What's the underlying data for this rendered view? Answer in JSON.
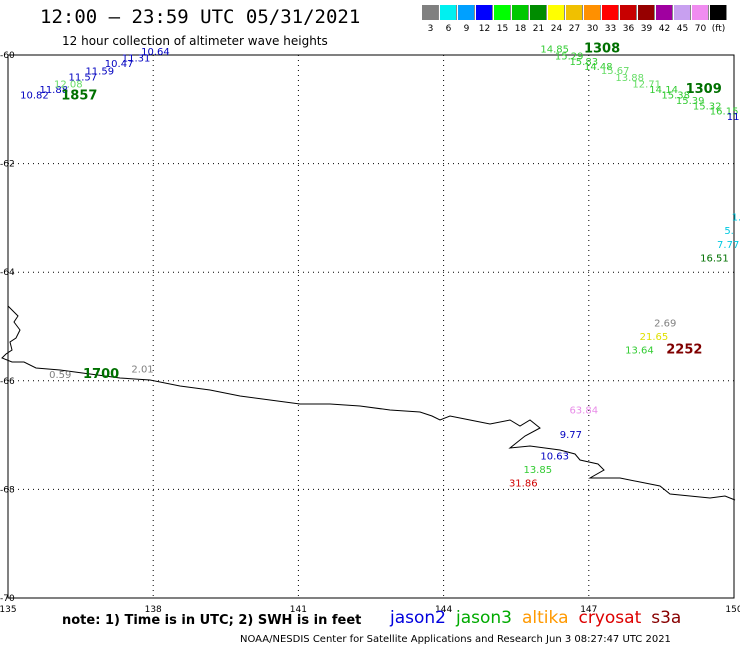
{
  "title": "12:00 – 23:59 UTC 05/31/2021",
  "subtitle": "12 hour collection of altimeter wave heights",
  "colorbar": {
    "colors": [
      "#808080",
      "#00f0f0",
      "#00a0ff",
      "#0000ff",
      "#00ff00",
      "#00c800",
      "#008c00",
      "#ffff00",
      "#f0c000",
      "#ff9000",
      "#ff0000",
      "#c80000",
      "#960000",
      "#a000a0",
      "#c8a0f0",
      "#f08cf0",
      "#000000"
    ],
    "labels": [
      "3",
      "6",
      "9",
      "12",
      "15",
      "18",
      "21",
      "24",
      "27",
      "30",
      "33",
      "36",
      "39",
      "42",
      "45",
      "70",
      "(ft)"
    ]
  },
  "axes": {
    "lon_labels": [
      "135",
      "138",
      "141",
      "144",
      "147",
      "150"
    ],
    "lon_values": [
      135,
      138,
      141,
      144,
      147,
      150
    ],
    "lat_labels": [
      "-60",
      "-62",
      "-64",
      "-66",
      "-68",
      "-70"
    ],
    "lat_values": [
      -60,
      -62,
      -64,
      -66,
      -68,
      -70
    ]
  },
  "labels": [
    {
      "text": "10.82",
      "lon": 135.25,
      "lat": -60.8,
      "color": "#0000c0"
    },
    {
      "text": "11.88",
      "lon": 135.65,
      "lat": -60.7,
      "color": "#0000c0"
    },
    {
      "text": "12.08",
      "lon": 135.95,
      "lat": -60.6,
      "color": "#66dd66"
    },
    {
      "text": "1857",
      "lon": 136.1,
      "lat": -60.82,
      "color": "#007000",
      "bold": true
    },
    {
      "text": "11.57",
      "lon": 136.25,
      "lat": -60.47,
      "color": "#0000c0"
    },
    {
      "text": "11.59",
      "lon": 136.6,
      "lat": -60.36,
      "color": "#0000c0"
    },
    {
      "text": "10.47",
      "lon": 137.0,
      "lat": -60.22,
      "color": "#0000c0"
    },
    {
      "text": "11.31",
      "lon": 137.35,
      "lat": -60.12,
      "color": "#0000c0"
    },
    {
      "text": "10.64",
      "lon": 137.75,
      "lat": -60.0,
      "color": "#0000c0"
    },
    {
      "text": "14.85",
      "lon": 146.0,
      "lat": -59.95,
      "color": "#33cc33"
    },
    {
      "text": "1308",
      "lon": 146.9,
      "lat": -59.95,
      "color": "#007000",
      "bold": true
    },
    {
      "text": "15.29",
      "lon": 146.3,
      "lat": -60.08,
      "color": "#33cc33"
    },
    {
      "text": "15.83",
      "lon": 146.6,
      "lat": -60.18,
      "color": "#33cc33"
    },
    {
      "text": "14.48",
      "lon": 146.9,
      "lat": -60.28,
      "color": "#33cc33"
    },
    {
      "text": "15.67",
      "lon": 147.25,
      "lat": -60.35,
      "color": "#66dd66"
    },
    {
      "text": "13.88",
      "lon": 147.55,
      "lat": -60.48,
      "color": "#66dd66"
    },
    {
      "text": "12.71",
      "lon": 147.9,
      "lat": -60.6,
      "color": "#66dd66"
    },
    {
      "text": "14.14",
      "lon": 148.25,
      "lat": -60.7,
      "color": "#33cc33"
    },
    {
      "text": "1309",
      "lon": 149.0,
      "lat": -60.7,
      "color": "#007000",
      "bold": true
    },
    {
      "text": "15.38",
      "lon": 148.5,
      "lat": -60.8,
      "color": "#33cc33"
    },
    {
      "text": "15.39",
      "lon": 148.8,
      "lat": -60.9,
      "color": "#33cc33"
    },
    {
      "text": "15.32",
      "lon": 149.15,
      "lat": -61.0,
      "color": "#33cc33"
    },
    {
      "text": "16.15",
      "lon": 149.5,
      "lat": -61.1,
      "color": "#33cc33"
    },
    {
      "text": "11",
      "lon": 149.85,
      "lat": -61.2,
      "color": "#0000c0"
    },
    {
      "text": "1.",
      "lon": 149.95,
      "lat": -63.05,
      "color": "#00c8e0"
    },
    {
      "text": "5.",
      "lon": 149.8,
      "lat": -63.3,
      "color": "#00c8e0"
    },
    {
      "text": "7.77",
      "lon": 149.65,
      "lat": -63.55,
      "color": "#00c8e0"
    },
    {
      "text": "16.51",
      "lon": 149.3,
      "lat": -63.8,
      "color": "#007000"
    },
    {
      "text": "2.69",
      "lon": 148.35,
      "lat": -65.0,
      "color": "#808080"
    },
    {
      "text": "21.65",
      "lon": 148.05,
      "lat": -65.25,
      "color": "#e0e000"
    },
    {
      "text": "13.64",
      "lon": 147.75,
      "lat": -65.5,
      "color": "#33cc33"
    },
    {
      "text": "2252",
      "lon": 148.6,
      "lat": -65.5,
      "color": "#800000",
      "bold": true
    },
    {
      "text": "0.59",
      "lon": 135.85,
      "lat": -65.95,
      "color": "#808080"
    },
    {
      "text": "1700",
      "lon": 136.55,
      "lat": -65.95,
      "color": "#007000",
      "bold": true
    },
    {
      "text": "2.01",
      "lon": 137.55,
      "lat": -65.85,
      "color": "#808080"
    },
    {
      "text": "63.84",
      "lon": 146.6,
      "lat": -66.6,
      "color": "#e88ce8"
    },
    {
      "text": "9.77",
      "lon": 146.4,
      "lat": -67.05,
      "color": "#0000c0"
    },
    {
      "text": "10.63",
      "lon": 146.0,
      "lat": -67.45,
      "color": "#0000c0"
    },
    {
      "text": "13.85",
      "lon": 145.65,
      "lat": -67.7,
      "color": "#33cc33"
    },
    {
      "text": "31.86",
      "lon": 145.35,
      "lat": -67.95,
      "color": "#d00000"
    }
  ],
  "footer": {
    "note": "note:  1) Time is in UTC;  2) SWH is in feet",
    "satellites": [
      {
        "name": "jason2",
        "color": "#0000dd"
      },
      {
        "name": "jason3",
        "color": "#00aa00"
      },
      {
        "name": "altika",
        "color": "#ff9900"
      },
      {
        "name": "cryosat",
        "color": "#dd0000"
      },
      {
        "name": "s3a",
        "color": "#880000"
      }
    ],
    "credit": "NOAA/NESDIS Center for Satellite Applications and Research    Jun  3 08:27:47 UTC 2021"
  }
}
